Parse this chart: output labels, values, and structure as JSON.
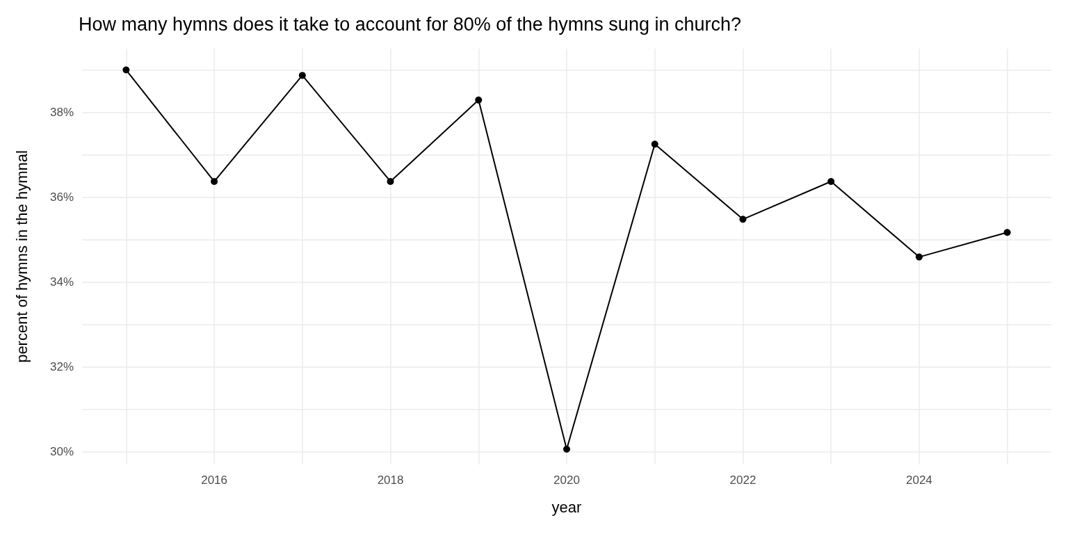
{
  "chart_data": {
    "type": "line",
    "title": "How many hymns does it take to account for 80% of the hymns sung in church?",
    "xlabel": "year",
    "ylabel": "percent of hymns in the hymnal",
    "x": [
      2015,
      2016,
      2017,
      2018,
      2019,
      2020,
      2021,
      2022,
      2023,
      2024,
      2025
    ],
    "series": [
      {
        "color": "#000000",
        "values": [
          39.0,
          36.37,
          38.87,
          36.37,
          38.29,
          30.06,
          37.25,
          35.48,
          36.37,
          34.59,
          35.17
        ]
      }
    ],
    "xlim": [
      2014.5,
      2025.5
    ],
    "xticks": [
      {
        "value": 2015,
        "label": null
      },
      2016,
      {
        "value": 2017,
        "label": null
      },
      2018,
      {
        "value": 2019,
        "label": null
      },
      2020,
      {
        "value": 2021,
        "label": null
      },
      2022,
      {
        "value": 2023,
        "label": null
      },
      2024,
      {
        "value": 2025,
        "label": null
      }
    ],
    "ylim": [
      29.7,
      39.5
    ],
    "yticks": [
      {
        "value": 30,
        "label": "30%"
      },
      {
        "value": 31,
        "label": null
      },
      {
        "value": 32,
        "label": "32%"
      },
      {
        "value": 33,
        "label": null
      },
      {
        "value": 34,
        "label": "34%"
      },
      {
        "value": 35,
        "label": null
      },
      {
        "value": 36,
        "label": "36%"
      },
      {
        "value": 37,
        "label": null
      },
      {
        "value": 38,
        "label": "38%"
      },
      {
        "value": 39,
        "label": null
      }
    ],
    "grid": true,
    "marker": "circle",
    "line_style": "solid"
  }
}
